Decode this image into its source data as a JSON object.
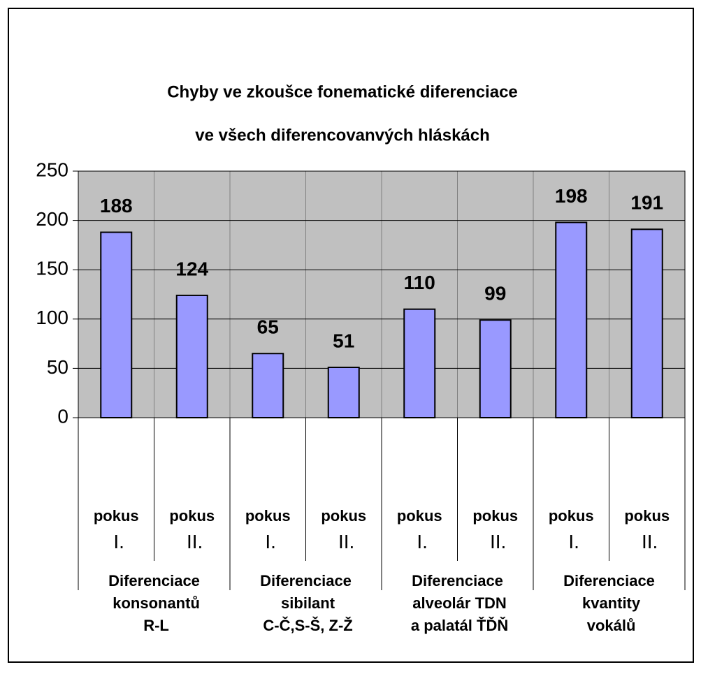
{
  "chart_data": {
    "type": "bar",
    "title": "Chyby ve zkoušce fonematické diferenciace",
    "subtitle": "ve všech diferencovanvých hláskách",
    "categories": [
      "pokus I.",
      "pokus II.",
      "pokus I.",
      "pokus II.",
      "pokus I.",
      "pokus II.",
      "pokus I.",
      "pokus II."
    ],
    "groups": [
      "Diferenciace konsonantů R-L",
      "Diferenciace sibilant C-Č,S-Š, Z-Ž",
      "Diferenciace alveolár TDN a palatál ŤĎŇ",
      "Diferenciace kvantity vokálů"
    ],
    "values": [
      188,
      124,
      65,
      51,
      110,
      99,
      198,
      191
    ],
    "color": "#9999ff",
    "ylim": [
      0,
      250
    ],
    "yticks": [
      0,
      50,
      100,
      150,
      200,
      250
    ],
    "grid": true
  }
}
